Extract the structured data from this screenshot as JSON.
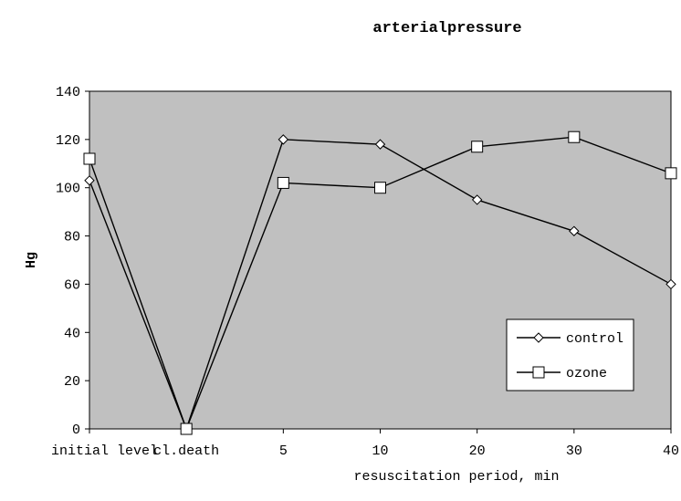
{
  "chart_data": {
    "type": "line",
    "title": "arterialpressure",
    "xlabel": "resuscitation period, min",
    "ylabel": "Hg",
    "categories": [
      "initial level",
      "cl.death",
      "5",
      "10",
      "20",
      "30",
      "40"
    ],
    "ylim": [
      0,
      140
    ],
    "yticks": [
      0,
      20,
      40,
      60,
      80,
      100,
      120,
      140
    ],
    "grid": false,
    "plot_background": "#c0c0c0",
    "legend_position": "bottom-right",
    "series": [
      {
        "name": "control",
        "marker": "diamond",
        "values": [
          103,
          0,
          120,
          118,
          95,
          82,
          60
        ]
      },
      {
        "name": "ozone",
        "marker": "square",
        "values": [
          112,
          0,
          102,
          100,
          117,
          121,
          106
        ]
      }
    ]
  }
}
